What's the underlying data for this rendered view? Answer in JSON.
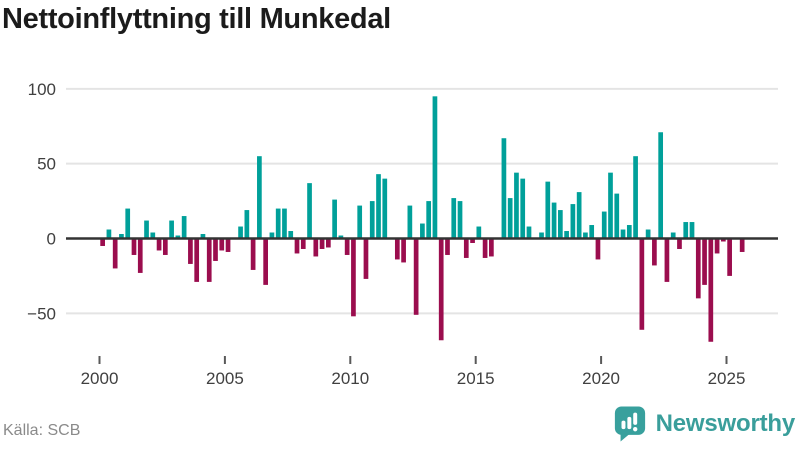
{
  "header": {
    "title": "Nettoinflyttning till Munkedal"
  },
  "footer": {
    "source_label": "Källa: SCB",
    "brand": "Newsworthy"
  },
  "icons": {
    "brand_logo": "newsworthy-speech-bubble-bar-chart-icon"
  },
  "colors": {
    "positive_bar": "#00a09a",
    "negative_bar": "#9b0d4e",
    "gridline": "#e4e4e4",
    "zero_axis": "#333333",
    "tick_label": "#404040",
    "tick_mark": "#595959",
    "title": "#1b1b1b",
    "source": "#8a8a8a",
    "brand": "#3a9e9b"
  },
  "chart_data": {
    "type": "bar",
    "title": "Nettoinflyttning till Munkedal",
    "frequency": "quarterly",
    "x_start": "2000Q1",
    "x_end": "2025Q3",
    "x_tick_labels": [
      "2000",
      "2005",
      "2010",
      "2015",
      "2020",
      "2025"
    ],
    "y_tick_labels": [
      "100",
      "50",
      "0",
      "−50"
    ],
    "y_tick_values": [
      100,
      50,
      0,
      -50
    ],
    "y_gridlines": [
      100,
      50,
      -50
    ],
    "ylim": [
      -75,
      105
    ],
    "grid": true,
    "legend": false,
    "series": [
      {
        "name": "Nettoinflyttning",
        "years": [
          {
            "year": 2000,
            "q": [
              -5,
              6,
              -20,
              3
            ]
          },
          {
            "year": 2001,
            "q": [
              20,
              -11,
              -23,
              12
            ]
          },
          {
            "year": 2002,
            "q": [
              4,
              -8,
              -11,
              12
            ]
          },
          {
            "year": 2003,
            "q": [
              2,
              15,
              -17,
              -29
            ]
          },
          {
            "year": 2004,
            "q": [
              3,
              -29,
              -15,
              -8
            ]
          },
          {
            "year": 2005,
            "q": [
              -9,
              0,
              8,
              19
            ]
          },
          {
            "year": 2006,
            "q": [
              -21,
              55,
              -31,
              4
            ]
          },
          {
            "year": 2007,
            "q": [
              20,
              20,
              5,
              -10
            ]
          },
          {
            "year": 2008,
            "q": [
              -7,
              37,
              -12,
              -7
            ]
          },
          {
            "year": 2009,
            "q": [
              -6,
              26,
              2,
              -11
            ]
          },
          {
            "year": 2010,
            "q": [
              -52,
              22,
              -27,
              25
            ]
          },
          {
            "year": 2011,
            "q": [
              43,
              40,
              0,
              -14
            ]
          },
          {
            "year": 2012,
            "q": [
              -16,
              22,
              -51,
              10
            ]
          },
          {
            "year": 2013,
            "q": [
              25,
              95,
              -68,
              -11
            ]
          },
          {
            "year": 2014,
            "q": [
              27,
              25,
              -13,
              -3
            ]
          },
          {
            "year": 2015,
            "q": [
              8,
              -13,
              -12,
              0
            ]
          },
          {
            "year": 2016,
            "q": [
              67,
              27,
              44,
              40
            ]
          },
          {
            "year": 2017,
            "q": [
              8,
              0,
              4,
              38
            ]
          },
          {
            "year": 2018,
            "q": [
              24,
              19,
              5,
              23
            ]
          },
          {
            "year": 2019,
            "q": [
              31,
              4,
              9,
              -14
            ]
          },
          {
            "year": 2020,
            "q": [
              18,
              44,
              30,
              6
            ]
          },
          {
            "year": 2021,
            "q": [
              9,
              55,
              -61,
              6
            ]
          },
          {
            "year": 2022,
            "q": [
              -18,
              71,
              -29,
              4
            ]
          },
          {
            "year": 2023,
            "q": [
              -7,
              11,
              11,
              -40
            ]
          },
          {
            "year": 2024,
            "q": [
              -31,
              -69,
              -10,
              -2
            ]
          },
          {
            "year": 2025,
            "q": [
              -25,
              0,
              -9
            ]
          }
        ]
      }
    ]
  }
}
